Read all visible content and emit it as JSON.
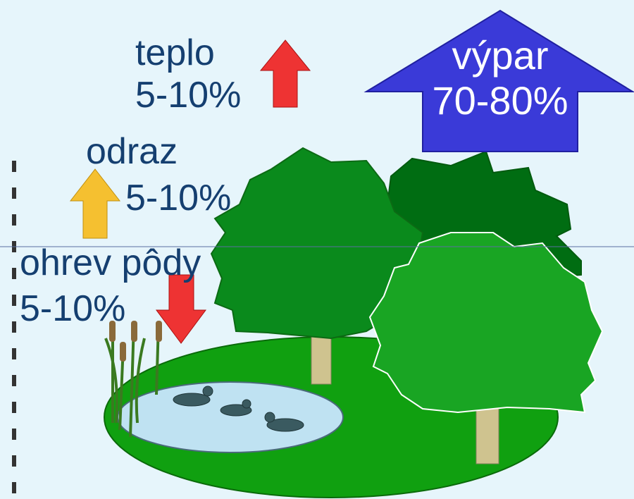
{
  "labels": [
    {
      "name": "teplo",
      "value": "5-10%"
    },
    {
      "name": "odraz",
      "value": "5-10%"
    },
    {
      "name": "ohrev pôdy",
      "value": "5-10%"
    },
    {
      "name": "výpar",
      "value": "70-80%"
    }
  ]
}
